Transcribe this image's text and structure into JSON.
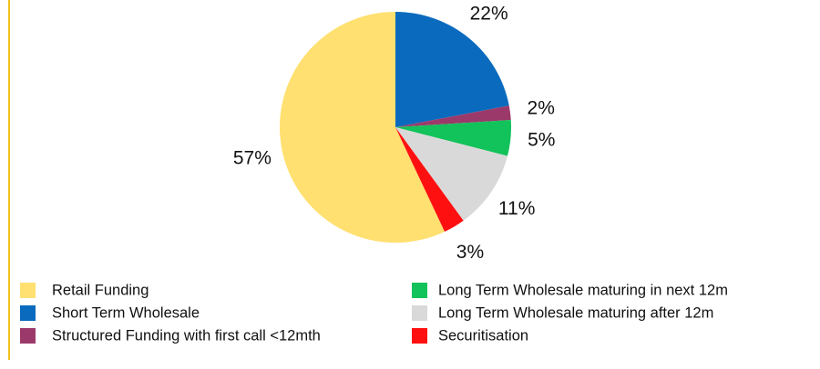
{
  "chart_data": {
    "type": "pie",
    "categories": [
      "Retail Funding",
      "Short Term Wholesale",
      "Structured Funding with first call <12mth",
      "Long Term Wholesale maturing in next 12m",
      "Long Term Wholesale maturing after 12m",
      "Securitisation"
    ],
    "values": [
      57,
      22,
      2,
      5,
      11,
      3
    ],
    "value_labels": [
      "57%",
      "22%",
      "2%",
      "5%",
      "11%",
      "3%"
    ],
    "colors": [
      "#FFE070",
      "#0A6BBE",
      "#9B3A6A",
      "#12C25A",
      "#D9D9D9",
      "#FF1010"
    ]
  }
}
